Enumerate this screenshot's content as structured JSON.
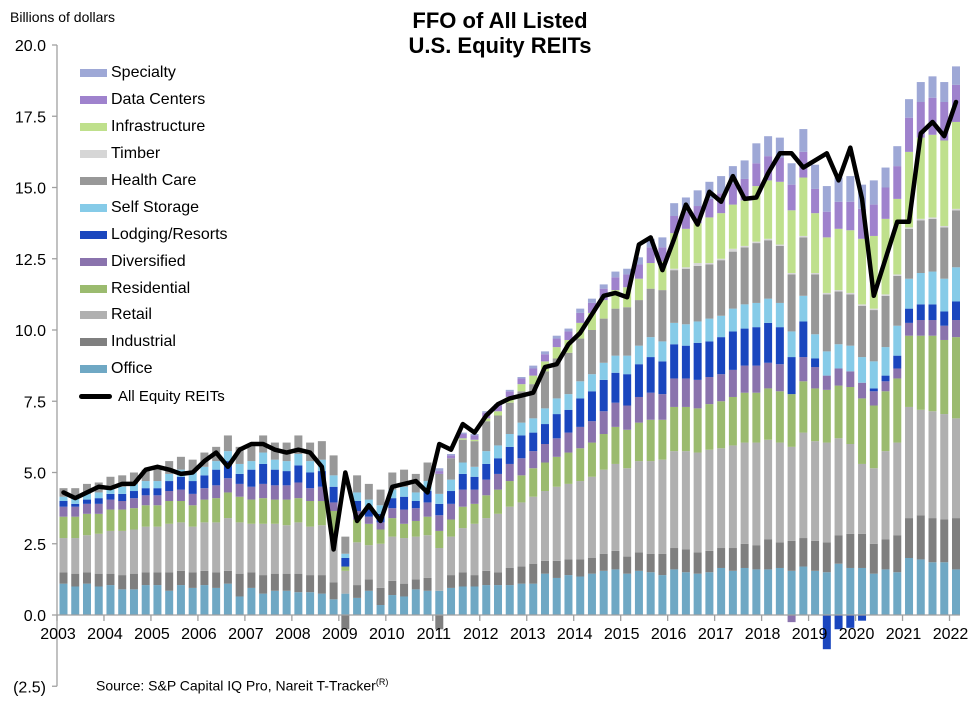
{
  "chart_data": {
    "type": "bar",
    "stacked": true,
    "title": "FFO of All Listed U.S. Equity REITs",
    "title_lines": [
      "FFO of All Listed",
      "U.S. Equity REITs"
    ],
    "ylabel": "Billions  of dollars",
    "xlabel": "",
    "ylim": [
      -2.5,
      20.0
    ],
    "yticks": [
      -2.5,
      0.0,
      2.5,
      5.0,
      7.5,
      10.0,
      12.5,
      15.0,
      17.5,
      20.0
    ],
    "ytick_labels": [
      "(2.5)",
      "0.0",
      "2.5",
      "5.0",
      "7.5",
      "10.0",
      "12.5",
      "15.0",
      "17.5",
      "20.0"
    ],
    "xtick_labels": [
      "2003",
      "2004",
      "2005",
      "2006",
      "2007",
      "2008",
      "2009",
      "2010",
      "2011",
      "2012",
      "2013",
      "2014",
      "2015",
      "2016",
      "2017",
      "2018",
      "2019",
      "2020",
      "2021",
      "2022"
    ],
    "frequency": "quarterly",
    "start": "2003Q1",
    "end": "2022Q1",
    "legend_position": "top-left",
    "source": "Source: S&P Capital IQ Pro, Nareit T-Tracker",
    "source_sup": "(R)",
    "series": [
      {
        "name": "Office",
        "color": "#6fa8c4",
        "values": [
          1.1,
          1.0,
          1.1,
          1.0,
          1.05,
          0.9,
          0.9,
          1.05,
          1.05,
          0.85,
          1.05,
          0.95,
          1.05,
          0.95,
          1.1,
          0.65,
          0.95,
          0.75,
          0.85,
          0.85,
          0.8,
          0.8,
          0.75,
          0.55,
          0.75,
          0.6,
          0.85,
          0.35,
          0.7,
          0.65,
          0.9,
          0.85,
          0.85,
          0.95,
          1.0,
          1.0,
          1.05,
          1.05,
          1.05,
          1.1,
          1.1,
          1.45,
          1.3,
          1.4,
          1.35,
          1.45,
          1.55,
          1.6,
          1.45,
          1.55,
          1.5,
          1.4,
          1.6,
          1.5,
          1.45,
          1.5,
          1.65,
          1.55,
          1.65,
          1.6,
          1.6,
          1.65,
          1.55,
          1.7,
          1.55,
          1.5,
          1.8,
          1.65,
          1.65,
          1.45,
          1.6,
          1.5,
          2.0,
          1.95,
          1.85,
          1.85,
          1.6
        ]
      },
      {
        "name": "Industrial",
        "color": "#7f7f7f",
        "values": [
          0.4,
          0.45,
          0.4,
          0.45,
          0.4,
          0.5,
          0.55,
          0.45,
          0.45,
          0.65,
          0.5,
          0.55,
          0.5,
          0.55,
          0.45,
          0.8,
          0.55,
          0.65,
          0.6,
          0.6,
          0.65,
          0.6,
          0.65,
          0.6,
          -0.5,
          0.45,
          0.4,
          0.6,
          0.5,
          0.45,
          0.35,
          0.45,
          -0.5,
          0.45,
          0.5,
          0.4,
          0.5,
          0.45,
          0.6,
          0.6,
          0.7,
          0.45,
          0.6,
          0.55,
          0.6,
          0.55,
          0.6,
          0.65,
          0.6,
          0.65,
          0.65,
          0.75,
          0.75,
          0.8,
          0.75,
          0.75,
          0.7,
          0.8,
          0.85,
          0.85,
          1.05,
          0.9,
          1.05,
          1.0,
          1.05,
          1.05,
          1.0,
          1.2,
          1.2,
          1.05,
          1.05,
          1.3,
          1.4,
          1.55,
          1.55,
          1.5,
          1.8
        ]
      },
      {
        "name": "Retail",
        "color": "#b0b0b0",
        "values": [
          1.2,
          1.25,
          1.3,
          1.4,
          1.5,
          1.55,
          1.55,
          1.6,
          1.6,
          1.7,
          1.7,
          1.6,
          1.7,
          1.75,
          1.85,
          1.8,
          1.7,
          1.8,
          1.75,
          1.7,
          1.8,
          1.7,
          1.75,
          1.65,
          0.8,
          1.5,
          1.2,
          1.55,
          1.55,
          1.6,
          1.5,
          1.5,
          1.5,
          1.35,
          1.55,
          1.8,
          1.85,
          2.05,
          2.15,
          2.25,
          2.35,
          2.45,
          2.6,
          2.65,
          2.75,
          2.85,
          2.95,
          3.05,
          3.1,
          3.2,
          3.25,
          3.3,
          3.4,
          3.45,
          3.5,
          3.55,
          3.5,
          3.6,
          3.55,
          3.6,
          3.5,
          3.5,
          3.3,
          3.7,
          3.5,
          3.5,
          3.4,
          3.15,
          2.45,
          2.65,
          3.1,
          3.25,
          3.9,
          3.7,
          3.75,
          3.7,
          3.5
        ]
      },
      {
        "name": "Residential",
        "color": "#9bbb6f",
        "values": [
          0.75,
          0.75,
          0.75,
          0.7,
          0.75,
          0.75,
          0.75,
          0.75,
          0.75,
          0.8,
          0.75,
          0.75,
          0.8,
          0.85,
          0.9,
          0.9,
          0.85,
          0.9,
          0.85,
          0.9,
          0.85,
          0.9,
          0.85,
          0.85,
          0.15,
          0.8,
          0.75,
          0.5,
          0.65,
          0.5,
          0.55,
          0.65,
          0.6,
          0.6,
          0.75,
          0.7,
          0.8,
          0.85,
          0.9,
          0.95,
          1.0,
          1.0,
          1.05,
          1.1,
          1.15,
          1.2,
          1.25,
          1.3,
          1.35,
          1.35,
          1.45,
          1.4,
          1.55,
          1.55,
          1.55,
          1.6,
          1.65,
          1.7,
          1.75,
          1.75,
          1.8,
          1.8,
          1.85,
          1.8,
          1.85,
          1.85,
          1.85,
          2.0,
          2.3,
          2.2,
          2.1,
          2.25,
          2.5,
          2.6,
          2.65,
          2.6,
          2.85
        ]
      },
      {
        "name": "Diversified",
        "color": "#8a73ad",
        "values": [
          0.35,
          0.35,
          0.35,
          0.35,
          0.35,
          0.3,
          0.35,
          0.35,
          0.35,
          0.35,
          0.4,
          0.4,
          0.4,
          0.45,
          0.5,
          0.45,
          0.45,
          0.5,
          0.5,
          0.5,
          0.55,
          0.45,
          0.5,
          0.3,
          0.0,
          0.3,
          0.25,
          0.25,
          0.35,
          0.5,
          0.45,
          0.5,
          0.55,
          0.55,
          0.6,
          0.5,
          0.55,
          0.55,
          0.6,
          0.6,
          0.6,
          0.65,
          0.65,
          0.7,
          0.75,
          0.75,
          0.8,
          0.85,
          0.85,
          0.9,
          0.95,
          0.9,
          1.0,
          1.0,
          1.0,
          0.95,
          0.95,
          0.95,
          0.95,
          0.95,
          0.9,
          0.95,
          -0.25,
          0.85,
          0.75,
          0.5,
          0.6,
          0.55,
          0.55,
          0.5,
          0.35,
          0.35,
          0.45,
          0.55,
          0.55,
          0.5,
          0.6
        ]
      },
      {
        "name": "Lodging/Resorts",
        "color": "#1a46be",
        "values": [
          0.2,
          0.1,
          0.15,
          0.2,
          0.2,
          0.25,
          0.25,
          0.25,
          0.25,
          0.35,
          0.45,
          0.45,
          0.45,
          0.55,
          0.6,
          0.35,
          0.6,
          0.7,
          0.55,
          0.5,
          0.6,
          0.55,
          0.55,
          0.55,
          0.3,
          0.35,
          0.3,
          0.3,
          0.35,
          0.45,
          0.25,
          0.4,
          0.4,
          0.45,
          0.55,
          0.45,
          0.55,
          0.55,
          0.6,
          0.8,
          0.65,
          0.7,
          0.85,
          0.8,
          1.0,
          1.05,
          1.1,
          1.05,
          1.1,
          1.15,
          1.25,
          1.15,
          1.2,
          1.15,
          1.3,
          1.25,
          1.3,
          1.35,
          1.3,
          1.35,
          1.4,
          1.3,
          1.3,
          1.25,
          0.3,
          -1.2,
          -0.5,
          -0.45,
          -0.2,
          0.1,
          0.2,
          0.45,
          0.5,
          0.55,
          0.55,
          0.5,
          0.65
        ]
      },
      {
        "name": "Self Storage",
        "color": "#86cbe8",
        "values": [
          0.15,
          0.2,
          0.2,
          0.2,
          0.2,
          0.25,
          0.25,
          0.25,
          0.25,
          0.25,
          0.25,
          0.3,
          0.3,
          0.3,
          0.35,
          0.35,
          0.3,
          0.4,
          0.35,
          0.35,
          0.4,
          0.4,
          0.4,
          0.4,
          0.15,
          0.3,
          0.3,
          0.3,
          0.3,
          0.35,
          0.3,
          0.35,
          0.35,
          0.4,
          0.4,
          0.35,
          0.45,
          0.45,
          0.45,
          0.45,
          0.5,
          0.55,
          0.55,
          0.55,
          0.6,
          0.6,
          0.6,
          0.6,
          0.65,
          0.65,
          0.7,
          0.7,
          0.75,
          0.75,
          0.75,
          0.8,
          0.75,
          0.8,
          0.85,
          0.85,
          0.85,
          0.85,
          0.9,
          0.9,
          0.85,
          0.85,
          0.85,
          0.9,
          0.9,
          0.95,
          1.0,
          1.05,
          1.05,
          1.1,
          1.15,
          1.15,
          1.2
        ]
      },
      {
        "name": "Health Care",
        "color": "#989898",
        "values": [
          0.3,
          0.35,
          0.35,
          0.35,
          0.4,
          0.4,
          0.4,
          0.4,
          0.45,
          0.45,
          0.45,
          0.45,
          0.5,
          0.5,
          0.55,
          0.6,
          0.6,
          0.6,
          0.6,
          0.65,
          0.65,
          0.65,
          0.65,
          0.7,
          0.6,
          0.6,
          0.55,
          0.55,
          0.6,
          0.6,
          0.65,
          0.65,
          0.7,
          0.75,
          0.8,
          0.9,
          1.05,
          1.05,
          1.1,
          1.1,
          1.2,
          1.3,
          1.4,
          1.45,
          1.5,
          1.55,
          1.55,
          1.65,
          1.7,
          1.6,
          1.7,
          1.8,
          1.85,
          1.95,
          1.95,
          1.9,
          1.95,
          2.0,
          2.0,
          2.1,
          2.05,
          2.0,
          2.0,
          2.05,
          2.1,
          2.0,
          1.85,
          1.8,
          1.8,
          1.8,
          1.8,
          1.75,
          1.75,
          1.85,
          1.85,
          1.8,
          2.0
        ]
      },
      {
        "name": "Timber",
        "color": "#d6d6d6",
        "values": [
          0.0,
          0.0,
          0.0,
          0.0,
          0.0,
          0.0,
          0.0,
          0.0,
          0.0,
          0.0,
          0.0,
          0.0,
          0.0,
          0.0,
          0.0,
          0.0,
          0.0,
          0.0,
          0.0,
          0.0,
          0.0,
          0.0,
          0.0,
          0.0,
          0.0,
          0.0,
          0.0,
          0.0,
          0.0,
          0.0,
          0.0,
          0.0,
          0.0,
          0.0,
          0.0,
          0.0,
          0.0,
          0.0,
          0.0,
          0.0,
          0.0,
          0.0,
          0.0,
          0.0,
          0.0,
          0.0,
          0.0,
          0.0,
          0.0,
          0.0,
          0.0,
          0.0,
          0.05,
          0.05,
          0.1,
          0.05,
          0.05,
          0.1,
          0.05,
          0.05,
          0.05,
          0.05,
          0.05,
          0.05,
          0.05,
          0.05,
          0.05,
          0.05,
          0.05,
          0.05,
          0.05,
          0.05,
          0.05,
          0.05,
          0.05,
          0.05,
          0.05
        ]
      },
      {
        "name": "Infrastructure",
        "color": "#bfe08c",
        "values": [
          0.0,
          0.0,
          0.0,
          0.0,
          0.0,
          0.0,
          0.0,
          0.0,
          0.0,
          0.0,
          0.0,
          0.0,
          0.0,
          0.0,
          0.0,
          0.0,
          0.0,
          0.0,
          0.0,
          0.0,
          0.0,
          0.0,
          0.0,
          0.0,
          0.0,
          0.0,
          0.0,
          0.0,
          0.0,
          0.0,
          0.0,
          0.0,
          0.0,
          0.0,
          0.05,
          0.05,
          0.1,
          0.15,
          0.2,
          0.25,
          0.3,
          0.35,
          0.4,
          0.45,
          0.55,
          0.6,
          0.65,
          0.65,
          0.7,
          0.75,
          0.9,
          1.0,
          1.25,
          1.35,
          1.4,
          1.6,
          1.6,
          1.55,
          1.6,
          1.95,
          2.05,
          2.2,
          2.2,
          2.05,
          2.1,
          1.95,
          2.15,
          2.2,
          2.3,
          2.55,
          2.65,
          2.65,
          2.65,
          2.85,
          2.9,
          3.0,
          3.05
        ]
      },
      {
        "name": "Data Centers",
        "color": "#9f82cd",
        "values": [
          0.0,
          0.0,
          0.0,
          0.0,
          0.0,
          0.0,
          0.0,
          0.0,
          0.0,
          0.0,
          0.0,
          0.0,
          0.0,
          0.0,
          0.0,
          0.0,
          0.0,
          0.0,
          0.0,
          0.0,
          0.0,
          0.0,
          0.0,
          0.0,
          0.0,
          0.0,
          0.0,
          0.0,
          0.0,
          0.0,
          0.0,
          0.0,
          0.1,
          0.1,
          0.15,
          0.15,
          0.2,
          0.2,
          0.2,
          0.2,
          0.25,
          0.25,
          0.3,
          0.3,
          0.35,
          0.35,
          0.4,
          0.45,
          0.45,
          0.5,
          0.55,
          0.5,
          0.6,
          0.6,
          0.6,
          0.65,
          0.7,
          0.75,
          0.75,
          0.8,
          0.85,
          0.85,
          0.9,
          0.9,
          0.85,
          0.9,
          0.95,
          1.0,
          1.05,
          1.1,
          1.1,
          1.15,
          1.2,
          1.25,
          1.3,
          1.35,
          1.3
        ]
      },
      {
        "name": "Specialty",
        "color": "#9ea8d6",
        "values": [
          0.0,
          0.0,
          0.0,
          0.0,
          0.0,
          0.0,
          0.0,
          0.0,
          0.0,
          0.0,
          0.0,
          0.0,
          0.0,
          0.0,
          0.0,
          0.0,
          0.0,
          0.0,
          0.0,
          0.0,
          0.0,
          0.0,
          0.0,
          0.0,
          0.0,
          0.0,
          0.0,
          0.0,
          0.0,
          0.0,
          0.0,
          0.0,
          0.1,
          0.05,
          0.05,
          0.05,
          0.05,
          0.05,
          0.05,
          0.05,
          0.1,
          0.1,
          0.1,
          0.1,
          0.15,
          0.15,
          0.15,
          0.2,
          0.2,
          0.25,
          0.3,
          0.35,
          0.45,
          0.5,
          0.55,
          0.6,
          0.6,
          0.6,
          0.65,
          0.7,
          0.7,
          0.7,
          0.75,
          0.8,
          0.85,
          0.9,
          0.85,
          0.9,
          0.85,
          0.85,
          0.7,
          0.7,
          0.65,
          0.7,
          0.75,
          0.7,
          0.65
        ]
      }
    ],
    "line_series": {
      "name": "All Equity REITs",
      "color": "#000000",
      "values": [
        4.3,
        4.1,
        4.3,
        4.5,
        4.45,
        4.6,
        4.6,
        5.1,
        5.2,
        5.1,
        4.95,
        5.0,
        5.4,
        5.7,
        5.2,
        5.8,
        6.0,
        6.0,
        5.8,
        5.7,
        5.8,
        5.7,
        5.2,
        2.3,
        5.0,
        3.3,
        3.85,
        3.3,
        4.5,
        4.6,
        4.7,
        4.3,
        6.0,
        5.8,
        6.7,
        6.4,
        7.0,
        7.4,
        7.6,
        7.7,
        7.8,
        8.7,
        8.8,
        9.5,
        9.9,
        10.55,
        11.2,
        11.3,
        11.15,
        13.0,
        13.25,
        12.1,
        13.2,
        14.4,
        13.7,
        14.85,
        14.5,
        15.4,
        14.6,
        14.65,
        15.5,
        16.2,
        16.2,
        15.7,
        15.95,
        16.2,
        15.25,
        16.4,
        14.6,
        11.2,
        12.5,
        13.8,
        13.8,
        16.9,
        17.3,
        16.8,
        18.0
      ]
    }
  }
}
